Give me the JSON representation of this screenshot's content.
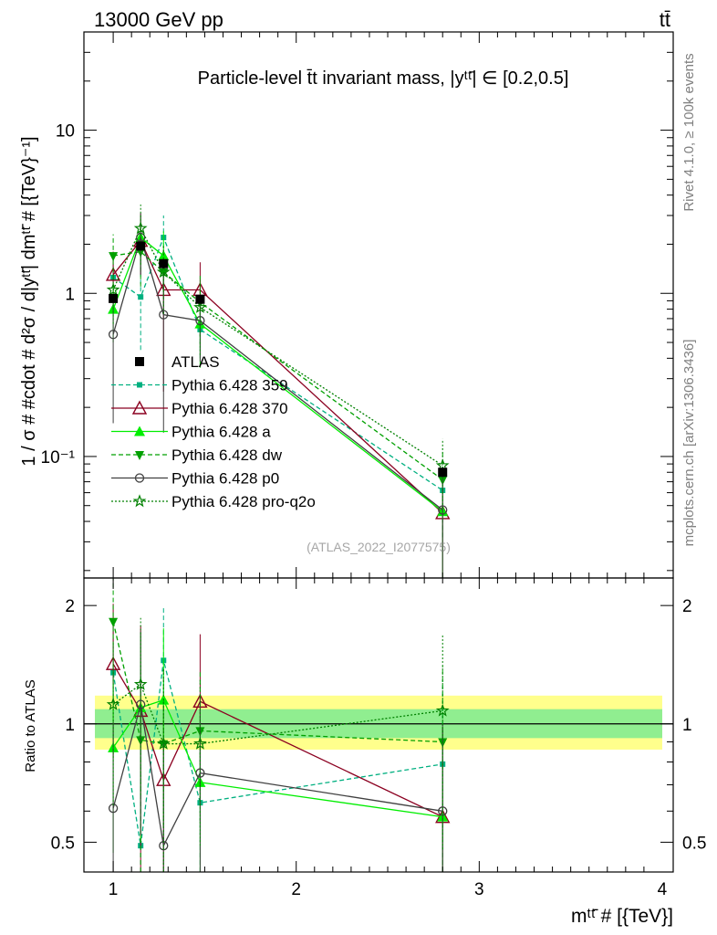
{
  "header": {
    "left": "13000 GeV pp",
    "right": "tt̄"
  },
  "side_labels": {
    "rivet": "Rivet 4.1.0, ≥ 100k events",
    "mcplots": "mcplots.cern.ch [arXiv:1306.3436]"
  },
  "chart_data": {
    "type": "line",
    "title": "Particle-level t̄t invariant mass, |yᵗᵗ̄| ∈ [0.2,0.5]",
    "watermark": "(ATLAS_2022_I2077575)",
    "xlabel": "mᵗᵗ̄ # [{TeV}]",
    "ylabel": "1 / σ # #cdot # d²σ / d|yᵗᵗ̄| dmᵗᵗ̄ # [{TeV}⁻¹]",
    "ratio_ylabel": "Ratio to ATLAS",
    "xlim": [
      0.84,
      4.06
    ],
    "ylim": [
      0.018,
      40
    ],
    "yscale": "log",
    "ratio_ylim": [
      0.42,
      2.35
    ],
    "ratio_yscale": "log",
    "x_ticks": [
      "1",
      "2",
      "3",
      "4"
    ],
    "y_ticks": [
      "10⁻¹",
      "1",
      "10"
    ],
    "ratio_y_ticks": [
      "0.5",
      "1",
      "2"
    ],
    "x": [
      1.0,
      1.15,
      1.275,
      1.475,
      2.8
    ],
    "band": {
      "inner": [
        0.92,
        1.09
      ],
      "outer": [
        0.86,
        1.18
      ],
      "x_range": [
        0.9,
        4.0
      ],
      "inner_color": "#90ee90",
      "outer_color": "#ffff8c"
    },
    "data": {
      "name": "ATLAS",
      "values": [
        0.93,
        1.95,
        1.52,
        0.92,
        0.08
      ],
      "err_lo": [
        0.05,
        0.1,
        0.1,
        0.05,
        0.005
      ],
      "err_hi": [
        0.05,
        0.1,
        0.1,
        0.05,
        0.005
      ]
    },
    "series": [
      {
        "name": "Pythia 6.428 359",
        "color": "#00b080",
        "dash": "5,3",
        "marker": "square",
        "values": [
          1.25,
          0.95,
          2.2,
          0.6,
          0.062
        ],
        "err_lo": [
          0.4,
          0.5,
          0.8,
          0.2,
          0.03
        ],
        "err_hi": [
          0.4,
          0.5,
          0.8,
          0.3,
          0.03
        ],
        "ratio": [
          1.35,
          0.49,
          1.45,
          0.63,
          0.79
        ],
        "ratio_err_lo": [
          0.5,
          0.45,
          0.6,
          0.3,
          0.5
        ],
        "ratio_err_hi": [
          0.5,
          0.45,
          0.55,
          0.4,
          0.5
        ]
      },
      {
        "name": "Pythia 6.428 370",
        "color": "#8b0020",
        "dash": "",
        "marker": "triangle-open",
        "values": [
          1.3,
          2.1,
          1.05,
          1.05,
          0.045
        ],
        "err_lo": [
          0.5,
          0.8,
          0.8,
          0.5,
          0.03
        ],
        "err_hi": [
          0.5,
          1.0,
          0.8,
          0.5,
          0.03
        ],
        "ratio": [
          1.42,
          1.08,
          0.72,
          1.14,
          0.58
        ],
        "ratio_err_lo": [
          0.6,
          0.7,
          0.4,
          0.5,
          0.4
        ],
        "ratio_err_hi": [
          0.6,
          0.7,
          0.4,
          0.55,
          0.4
        ]
      },
      {
        "name": "Pythia 6.428 a",
        "color": "#00ee00",
        "dash": "",
        "marker": "triangle",
        "values": [
          0.8,
          2.2,
          1.7,
          0.65,
          0.046
        ],
        "err_lo": [
          0.3,
          0.8,
          0.7,
          0.3,
          0.03
        ],
        "err_hi": [
          0.3,
          0.8,
          0.7,
          0.3,
          0.03
        ],
        "ratio": [
          0.87,
          1.1,
          1.15,
          0.71,
          0.58
        ],
        "ratio_err_lo": [
          0.4,
          0.6,
          0.6,
          0.3,
          0.4
        ],
        "ratio_err_hi": [
          0.4,
          0.6,
          0.6,
          0.3,
          0.4
        ]
      },
      {
        "name": "Pythia 6.428 dw",
        "color": "#00a000",
        "dash": "5,3",
        "marker": "triangle-down",
        "values": [
          1.7,
          1.8,
          1.35,
          0.88,
          0.072
        ],
        "err_lo": [
          0.6,
          0.7,
          0.6,
          0.4,
          0.04
        ],
        "err_hi": [
          0.6,
          0.7,
          0.6,
          0.4,
          0.04
        ],
        "ratio": [
          1.82,
          0.91,
          0.89,
          0.96,
          0.9
        ],
        "ratio_err_lo": [
          0.7,
          0.5,
          0.5,
          0.4,
          0.5
        ],
        "ratio_err_hi": [
          0.7,
          0.5,
          0.5,
          0.4,
          0.5
        ]
      },
      {
        "name": "Pythia 6.428 p0",
        "color": "#404040",
        "dash": "",
        "marker": "circle-open",
        "values": [
          0.56,
          2.2,
          0.74,
          0.68,
          0.047
        ],
        "err_lo": [
          0.4,
          0.9,
          0.6,
          0.3,
          0.03
        ],
        "err_hi": [
          0.4,
          0.9,
          0.6,
          0.3,
          0.03
        ],
        "ratio": [
          0.61,
          1.12,
          0.49,
          0.75,
          0.6
        ],
        "ratio_err_lo": [
          0.4,
          0.6,
          0.4,
          0.4,
          0.4
        ],
        "ratio_err_hi": [
          0.4,
          0.6,
          0.4,
          0.4,
          0.4
        ]
      },
      {
        "name": "Pythia 6.428 pro-q2o",
        "color": "#008000",
        "dash": "2,2",
        "marker": "star",
        "values": [
          1.05,
          2.5,
          1.35,
          0.82,
          0.088
        ],
        "err_lo": [
          0.4,
          1.0,
          0.6,
          0.4,
          0.04
        ],
        "err_hi": [
          0.4,
          1.0,
          0.6,
          0.4,
          0.04
        ],
        "ratio": [
          1.12,
          1.26,
          0.89,
          0.89,
          1.08
        ],
        "ratio_err_lo": [
          0.5,
          0.6,
          0.5,
          0.4,
          0.6
        ],
        "ratio_err_hi": [
          0.5,
          0.6,
          0.5,
          0.4,
          0.6
        ]
      }
    ]
  }
}
